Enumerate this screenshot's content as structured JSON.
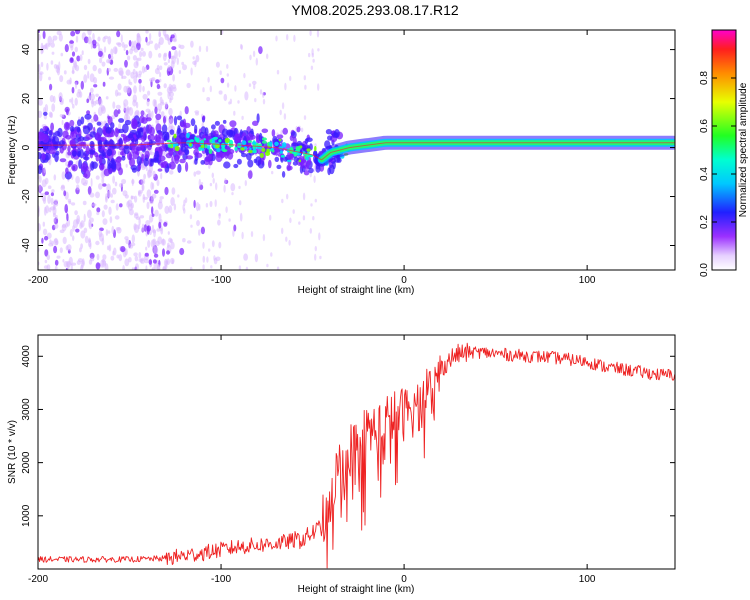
{
  "title": "YM08.2025.293.08.17.R12",
  "colors": {
    "snr_line": "#ee2222",
    "track": "#ff2020",
    "scatter_light": "#d9b8ff",
    "scatter_dark": "#7a1fff",
    "blob": "#3a1aff"
  },
  "chart_data": [
    {
      "type": "heatmap",
      "name": "spectrogram",
      "xlabel": "Height of straight line (km)",
      "ylabel": "Frequency (Hz)",
      "xlim": [
        -200,
        148
      ],
      "ylim": [
        -50,
        48
      ],
      "xticks": [
        -200,
        -100,
        0,
        100
      ],
      "yticks": [
        -40,
        -20,
        0,
        20,
        40
      ],
      "track": {
        "x": [
          -200,
          -150,
          -120,
          -90,
          -70,
          -50,
          -45,
          -40,
          -30,
          -20,
          -10,
          0,
          20,
          50,
          80,
          110,
          148
        ],
        "y": [
          1,
          1,
          2,
          1,
          0,
          -3,
          -5,
          -2,
          0,
          1,
          2,
          2,
          2,
          2,
          2,
          2,
          2
        ]
      },
      "colorbar": {
        "label": "Normalized spectral amplitude",
        "range": [
          0,
          1
        ],
        "ticks": [
          0.0,
          0.2,
          0.4,
          0.6,
          0.8
        ],
        "tick_labels": [
          "0.0",
          "0.2",
          "0.4",
          "0.6",
          "0.8"
        ]
      }
    },
    {
      "type": "line",
      "name": "snr",
      "xlabel": "Height of straight line (km)",
      "ylabel": "SNR (10 * v/v)",
      "xlim": [
        -200,
        148
      ],
      "ylim": [
        0,
        4400
      ],
      "xticks": [
        -200,
        -100,
        0,
        100
      ],
      "yticks": [
        1000,
        2000,
        3000,
        4000
      ],
      "trend": {
        "x": [
          -200,
          -150,
          -130,
          -110,
          -90,
          -70,
          -55,
          -45,
          -40,
          -35,
          -25,
          -15,
          -5,
          5,
          10,
          15,
          20,
          25,
          30,
          40,
          60,
          80,
          100,
          110,
          120,
          130,
          140,
          148
        ],
        "y": [
          180,
          180,
          200,
          300,
          420,
          480,
          560,
          800,
          1400,
          2000,
          2450,
          2650,
          2850,
          3000,
          3100,
          3400,
          3750,
          3950,
          4050,
          4080,
          4020,
          3980,
          3900,
          3800,
          3750,
          3700,
          3650,
          3650
        ]
      }
    }
  ]
}
